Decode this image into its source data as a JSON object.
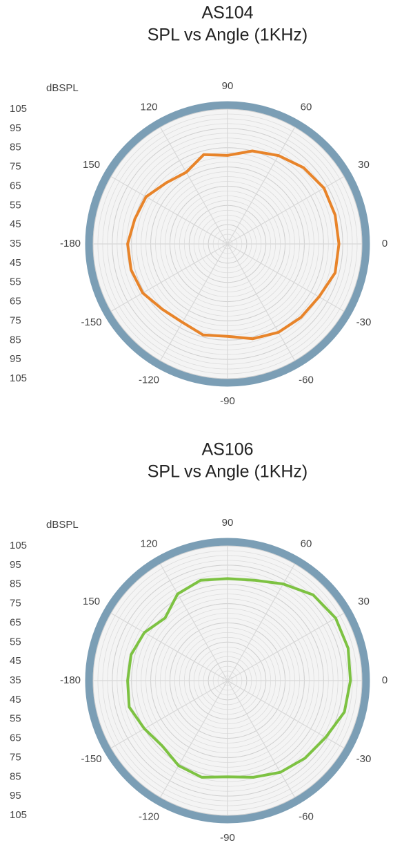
{
  "chart_data": [
    {
      "type": "polar",
      "title": "AS104",
      "subtitle": "SPL vs Angle (1KHz)",
      "r_label": "dBSPL",
      "rlim": [
        35,
        105
      ],
      "rticks": [
        105,
        95,
        85,
        75,
        65,
        55,
        45,
        35,
        45,
        55,
        65,
        75,
        85,
        95,
        105
      ],
      "thetaticks": [
        90,
        60,
        30,
        0,
        -30,
        -60,
        -90,
        -120,
        -150,
        -180,
        150,
        120
      ],
      "theta": [
        0,
        15,
        30,
        45,
        60,
        75,
        90,
        105,
        120,
        135,
        150,
        165,
        180,
        -165,
        -150,
        -135,
        -120,
        -105,
        -90,
        -75,
        -60,
        -45,
        -30,
        -15
      ],
      "color": "#e8842a",
      "values": [
        93,
        93,
        93,
        91,
        88,
        85,
        81,
        83,
        78,
        80,
        84,
        85,
        87,
        87,
        86,
        83,
        82,
        84,
        83,
        86,
        88,
        89,
        90,
        93
      ]
    },
    {
      "type": "polar",
      "title": "AS106",
      "subtitle": "SPL vs Angle (1KHz)",
      "r_label": "dBSPL",
      "rlim": [
        35,
        105
      ],
      "rticks": [
        105,
        95,
        85,
        75,
        65,
        55,
        45,
        35,
        45,
        55,
        65,
        75,
        85,
        95,
        105
      ],
      "thetaticks": [
        90,
        60,
        30,
        0,
        -30,
        -60,
        -90,
        -120,
        -150,
        -180,
        150,
        120
      ],
      "theta": [
        0,
        15,
        30,
        45,
        60,
        75,
        90,
        105,
        120,
        135,
        150,
        165,
        180,
        -165,
        -150,
        -135,
        -120,
        -105,
        -90,
        -75,
        -60,
        -45,
        -30,
        -15
      ],
      "color": "#7dc242",
      "values": [
        99,
        100,
        100,
        98,
        93,
        89,
        88,
        89,
        87,
        81,
        85,
        87,
        87,
        88,
        85,
        83,
        86,
        87,
        85,
        87,
        90,
        92,
        94,
        98
      ]
    }
  ]
}
